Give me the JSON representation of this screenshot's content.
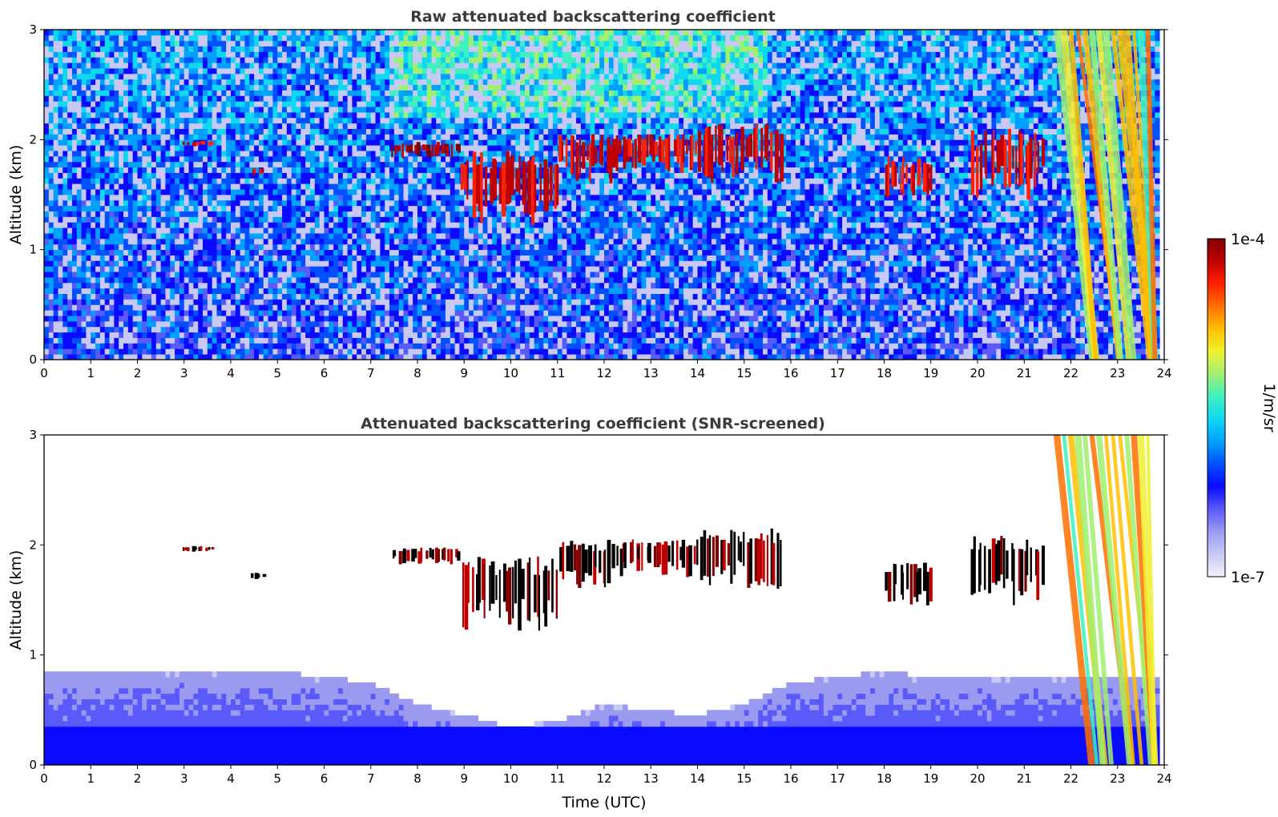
{
  "figure": {
    "xlabel": "Time (UTC)",
    "colorbar": {
      "label": "1/m/sr",
      "max_label": "1e-4",
      "min_label": "1e-7",
      "colormap": [
        "#f4f4fb",
        "#c8c8f4",
        "#9a9af0",
        "#5a5afa",
        "#0a0aff",
        "#0050ff",
        "#00a0ff",
        "#10d8f0",
        "#40f0c0",
        "#a0f070",
        "#f0f030",
        "#ffc000",
        "#ff7000",
        "#ff2000",
        "#c00000",
        "#800000"
      ]
    }
  },
  "chart_data": [
    {
      "type": "heatmap",
      "title": "Raw attenuated backscattering coefficient",
      "xlabel": "",
      "ylabel": "Altitude (km)",
      "xlim": [
        0,
        24
      ],
      "ylim": [
        0,
        3
      ],
      "x_ticks": [
        "0",
        "1",
        "2",
        "3",
        "4",
        "5",
        "6",
        "7",
        "8",
        "9",
        "10",
        "11",
        "12",
        "13",
        "14",
        "15",
        "16",
        "17",
        "18",
        "19",
        "20",
        "21",
        "22",
        "23",
        "24"
      ],
      "y_ticks": [
        "0",
        "1",
        "2",
        "3"
      ],
      "color_scale": "log",
      "color_range": [
        "1e-7",
        "1e-4"
      ],
      "features": {
        "noise_background": true,
        "cloud_layers": [
          {
            "x": [
              7.4,
              8.9
            ],
            "y": [
              1.82,
              1.98
            ],
            "level": 1.0
          },
          {
            "x": [
              8.9,
              11.0
            ],
            "y": [
              1.2,
              1.9
            ],
            "level": 0.95
          },
          {
            "x": [
              11.0,
              12.2
            ],
            "y": [
              1.6,
              2.05
            ],
            "level": 0.95
          },
          {
            "x": [
              12.2,
              14.0
            ],
            "y": [
              1.7,
              2.05
            ],
            "level": 0.95
          },
          {
            "x": [
              14.0,
              15.8
            ],
            "y": [
              1.6,
              2.15
            ],
            "level": 0.95
          },
          {
            "x": [
              18.0,
              19.0
            ],
            "y": [
              1.45,
              1.85
            ],
            "level": 0.95
          },
          {
            "x": [
              19.8,
              21.4
            ],
            "y": [
              1.45,
              2.1
            ],
            "level": 0.95
          },
          {
            "x": [
              2.9,
              3.6
            ],
            "y": [
              1.93,
              1.99
            ],
            "level": 0.95
          },
          {
            "x": [
              4.4,
              4.7
            ],
            "y": [
              1.68,
              1.75
            ],
            "level": 0.95
          }
        ],
        "precipitation_streaks": [
          {
            "x": [
              21.7,
              23.8
            ],
            "y": [
              0,
              3.0
            ],
            "level": 0.7
          }
        ]
      }
    },
    {
      "type": "heatmap",
      "title": "Attenuated backscattering coefficient (SNR-screened)",
      "xlabel": "Time (UTC)",
      "ylabel": "Altitude (km)",
      "xlim": [
        0,
        24
      ],
      "ylim": [
        0,
        3
      ],
      "x_ticks": [
        "0",
        "1",
        "2",
        "3",
        "4",
        "5",
        "6",
        "7",
        "8",
        "9",
        "10",
        "11",
        "12",
        "13",
        "14",
        "15",
        "16",
        "17",
        "18",
        "19",
        "20",
        "21",
        "22",
        "23",
        "24"
      ],
      "y_ticks": [
        "0",
        "1",
        "2",
        "3"
      ],
      "color_scale": "log",
      "color_range": [
        "1e-7",
        "1e-4"
      ],
      "features": {
        "noise_background": false,
        "boundary_layer_top_km": [
          0.85,
          0.85,
          0.85,
          0.85,
          0.85,
          0.85,
          0.8,
          0.75,
          0.55,
          0.45,
          0.35,
          0.4,
          0.55,
          0.5,
          0.45,
          0.55,
          0.75,
          0.8,
          0.85,
          0.8,
          0.8,
          0.8,
          0.8,
          0.8,
          0.8
        ],
        "cloud_layers": [
          {
            "x": [
              7.4,
              8.9
            ],
            "y": [
              1.82,
              1.98
            ],
            "level": 1.0
          },
          {
            "x": [
              8.9,
              11.0
            ],
            "y": [
              1.2,
              1.9
            ],
            "level": 1.0
          },
          {
            "x": [
              11.0,
              12.2
            ],
            "y": [
              1.6,
              2.05
            ],
            "level": 1.0
          },
          {
            "x": [
              12.2,
              14.0
            ],
            "y": [
              1.7,
              2.05
            ],
            "level": 1.0
          },
          {
            "x": [
              14.0,
              15.8
            ],
            "y": [
              1.6,
              2.15
            ],
            "level": 1.0
          },
          {
            "x": [
              18.0,
              19.0
            ],
            "y": [
              1.45,
              1.85
            ],
            "level": 1.0
          },
          {
            "x": [
              19.8,
              21.4
            ],
            "y": [
              1.45,
              2.1
            ],
            "level": 1.0
          },
          {
            "x": [
              2.9,
              3.6
            ],
            "y": [
              1.93,
              1.99
            ],
            "level": 1.0
          },
          {
            "x": [
              4.4,
              4.7
            ],
            "y": [
              1.68,
              1.75
            ],
            "level": 1.0
          }
        ],
        "precipitation_streaks": [
          {
            "x": [
              21.7,
              23.8
            ],
            "y": [
              0,
              3.0
            ],
            "level": 0.7
          }
        ]
      }
    }
  ]
}
